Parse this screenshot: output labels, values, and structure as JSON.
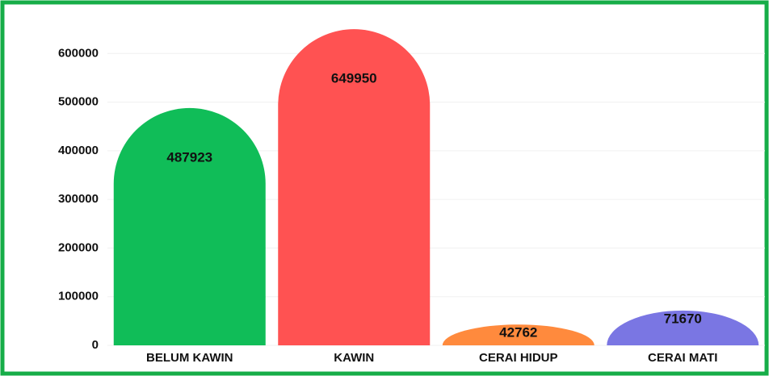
{
  "chart_data": {
    "type": "bar",
    "categories": [
      "BELUM KAWIN",
      "KAWIN",
      "CERAI HIDUP",
      "CERAI MATI"
    ],
    "values": [
      487923,
      649950,
      42762,
      71670
    ],
    "colors": [
      "#10bd58",
      "#ff5252",
      "#ff8a3d",
      "#7a76e3"
    ],
    "ylim": [
      0,
      700000
    ],
    "yticks": [
      0,
      100000,
      200000,
      300000,
      400000,
      500000,
      600000
    ],
    "grid": true
  }
}
